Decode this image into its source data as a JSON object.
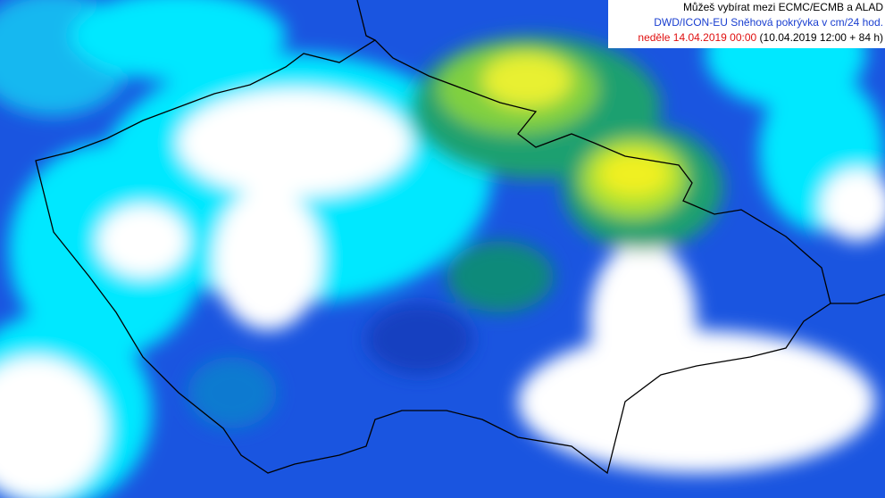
{
  "info_box": {
    "note": "Můžeš vybírat mezi ECMC/ECMB a ALAD",
    "model": "DWD/ICON-EU Sněhová pokrývka v cm/24 hod.",
    "valid_time": "neděle 14.04.2019 00:00",
    "init_time": "(10.04.2019 12:00 + 84 h)"
  }
}
